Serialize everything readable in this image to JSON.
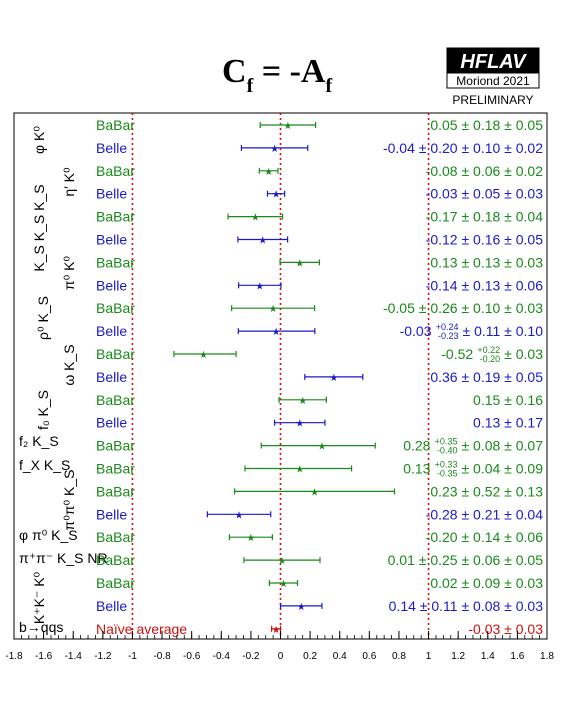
{
  "colors": {
    "babar": "#1a8a1a",
    "belle": "#1a1acc",
    "avg": "#cc1111",
    "axis": "#000000"
  },
  "header": {
    "title_main": "C",
    "title_sub1": "f",
    "title_mid": " = -A",
    "title_sub2": "f"
  },
  "logo": {
    "name": "HFLAV",
    "sub": "Moriond 2021",
    "status": "PRELIMINARY"
  },
  "chart_data": {
    "type": "scatter",
    "title": "Cf = -Af",
    "xlabel": "",
    "ylabel": "",
    "xlim": [
      -1.8,
      1.8
    ],
    "xticks": [
      "-1.8",
      "-1.6",
      "-1.4",
      "-1.2",
      "-1",
      "-0.8",
      "-0.6",
      "-0.4",
      "-0.2",
      "0",
      "0.2",
      "0.4",
      "0.6",
      "0.8",
      "1",
      "1.2",
      "1.4",
      "1.6",
      "1.8"
    ],
    "reference_lines": [
      -1,
      0,
      1
    ],
    "groups": [
      {
        "label": "φ K⁰"
      },
      {
        "label": "η′ K⁰"
      },
      {
        "label": "K_S K_S K_S"
      },
      {
        "label": "π⁰ K⁰"
      },
      {
        "label": "ρ⁰ K_S"
      },
      {
        "label": "ω K_S"
      },
      {
        "label": "f₀ K_S"
      },
      {
        "label": "f₂ K_S"
      },
      {
        "label": "f_X K_S"
      },
      {
        "label": "π⁰π⁰ K_S"
      },
      {
        "label": "φ π⁰ K_S"
      },
      {
        "label": "π⁺π⁻ K_S NR"
      },
      {
        "label": "K⁺K⁻ K⁰"
      },
      {
        "label": "b→qqs"
      }
    ],
    "points": [
      {
        "exp": "BaBar",
        "value": 0.05,
        "err_lo": 0.187,
        "err_hi": 0.187,
        "text": "0.05 ± 0.18 ± 0.05"
      },
      {
        "exp": "Belle",
        "value": -0.04,
        "err_lo": 0.224,
        "err_hi": 0.224,
        "text": "-0.04 ± 0.20 ± 0.10 ± 0.02"
      },
      {
        "exp": "BaBar",
        "value": -0.08,
        "err_lo": 0.063,
        "err_hi": 0.063,
        "text": "-0.08 ± 0.06 ± 0.02"
      },
      {
        "exp": "Belle",
        "value": -0.03,
        "err_lo": 0.058,
        "err_hi": 0.058,
        "text": "-0.03 ± 0.05 ± 0.03"
      },
      {
        "exp": "BaBar",
        "value": -0.17,
        "err_lo": 0.184,
        "err_hi": 0.184,
        "text": "-0.17 ± 0.18 ± 0.04"
      },
      {
        "exp": "Belle",
        "value": -0.12,
        "err_lo": 0.168,
        "err_hi": 0.168,
        "text": "-0.12 ± 0.16 ± 0.05"
      },
      {
        "exp": "BaBar",
        "value": 0.13,
        "err_lo": 0.133,
        "err_hi": 0.133,
        "text": "0.13 ± 0.13 ± 0.03"
      },
      {
        "exp": "Belle",
        "value": -0.14,
        "err_lo": 0.143,
        "err_hi": 0.143,
        "text": "-0.14 ± 0.13 ± 0.06"
      },
      {
        "exp": "BaBar",
        "value": -0.05,
        "err_lo": 0.28,
        "err_hi": 0.28,
        "text": "-0.05 ± 0.26 ± 0.10 ± 0.03"
      },
      {
        "exp": "Belle",
        "value": -0.03,
        "err_lo": 0.255,
        "err_hi": 0.262,
        "text_main": "-0.03",
        "text_up": "+0.24",
        "text_dn": "-0.23",
        "text_tail": "± 0.11 ± 0.10"
      },
      {
        "exp": "BaBar",
        "value": -0.52,
        "err_lo": 0.2,
        "err_hi": 0.22,
        "text_main": "-0.52",
        "text_up": "+0.22",
        "text_dn": "-0.20",
        "text_tail": "± 0.03"
      },
      {
        "exp": "Belle",
        "value": 0.36,
        "err_lo": 0.196,
        "err_hi": 0.196,
        "text": "0.36 ± 0.19 ± 0.05"
      },
      {
        "exp": "BaBar",
        "value": 0.15,
        "err_lo": 0.16,
        "err_hi": 0.16,
        "text": "0.15 ± 0.16"
      },
      {
        "exp": "Belle",
        "value": 0.13,
        "err_lo": 0.17,
        "err_hi": 0.17,
        "text": "0.13 ± 0.17"
      },
      {
        "exp": "BaBar",
        "value": 0.28,
        "err_lo": 0.41,
        "err_hi": 0.36,
        "text_main": "0.28",
        "text_up": "+0.35",
        "text_dn": "-0.40",
        "text_tail": "± 0.08 ± 0.07"
      },
      {
        "exp": "BaBar",
        "value": 0.13,
        "err_lo": 0.37,
        "err_hi": 0.35,
        "text_main": "0.13",
        "text_up": "+0.33",
        "text_dn": "-0.35",
        "text_tail": "± 0.04 ± 0.09"
      },
      {
        "exp": "BaBar",
        "value": 0.23,
        "err_lo": 0.54,
        "err_hi": 0.54,
        "text": "0.23 ± 0.52 ± 0.13"
      },
      {
        "exp": "Belle",
        "value": -0.28,
        "err_lo": 0.214,
        "err_hi": 0.214,
        "text": "-0.28 ± 0.21 ± 0.04"
      },
      {
        "exp": "BaBar",
        "value": -0.2,
        "err_lo": 0.145,
        "err_hi": 0.145,
        "text": "-0.20 ± 0.14 ± 0.06"
      },
      {
        "exp": "BaBar",
        "value": 0.01,
        "err_lo": 0.257,
        "err_hi": 0.257,
        "text": "0.01 ± 0.25 ± 0.06 ± 0.05"
      },
      {
        "exp": "BaBar",
        "value": 0.02,
        "err_lo": 0.095,
        "err_hi": 0.095,
        "text": "0.02 ± 0.09 ± 0.03"
      },
      {
        "exp": "Belle",
        "value": 0.14,
        "err_lo": 0.14,
        "err_hi": 0.14,
        "text": "0.14 ± 0.11 ± 0.08 ± 0.03"
      },
      {
        "exp": "Naïve average",
        "value": -0.03,
        "err_lo": 0.03,
        "err_hi": 0.03,
        "text": "-0.03 ± 0.03"
      }
    ]
  }
}
